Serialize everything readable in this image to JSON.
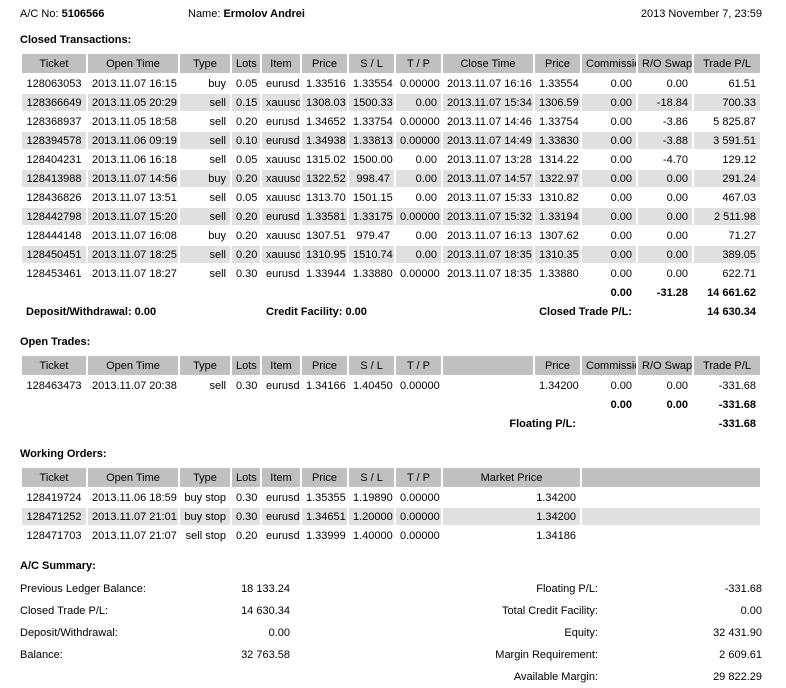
{
  "colors": {
    "header_bg": "#C0C0C0",
    "row_alt_bg": "#E0E0E0",
    "page_bg": "#FFFFFF",
    "text": "#000000"
  },
  "header": {
    "ac_no_label": "A/C No:",
    "ac_no": "5106566",
    "name_label": "Name:",
    "name": "Ermolov Andrei",
    "datetime": "2013 November 7, 23:59"
  },
  "closed_transactions": {
    "title": "Closed Transactions:",
    "columns": [
      "Ticket",
      "Open Time",
      "Type",
      "Lots",
      "Item",
      "Price",
      "S / L",
      "T / P",
      "Close Time",
      "Price",
      "Commission",
      "R/O Swap",
      "Trade P/L"
    ],
    "rows": [
      [
        "128063053",
        "2013.11.07 16:15",
        "buy",
        "0.05",
        "eurusd",
        "1.33516",
        "1.33554",
        "0.00000",
        "2013.11.07 16:16",
        "1.33554",
        "0.00",
        "0.00",
        "61.51"
      ],
      [
        "128366649",
        "2013.11.05 20:29",
        "sell",
        "0.15",
        "xauusd",
        "1308.03",
        "1500.33",
        "0.00",
        "2013.11.07 15:34",
        "1306.59",
        "0.00",
        "-18.84",
        "700.33"
      ],
      [
        "128368937",
        "2013.11.05 18:58",
        "sell",
        "0.20",
        "eurusd",
        "1.34652",
        "1.33754",
        "0.00000",
        "2013.11.07 14:46",
        "1.33754",
        "0.00",
        "-3.86",
        "5 825.87"
      ],
      [
        "128394578",
        "2013.11.06 09:19",
        "sell",
        "0.10",
        "eurusd",
        "1.34938",
        "1.33813",
        "0.00000",
        "2013.11.07 14:49",
        "1.33830",
        "0.00",
        "-3.88",
        "3 591.51"
      ],
      [
        "128404231",
        "2013.11.06 16:18",
        "sell",
        "0.05",
        "xauusd",
        "1315.02",
        "1500.00",
        "0.00",
        "2013.11.07 13:28",
        "1314.22",
        "0.00",
        "-4.70",
        "129.12"
      ],
      [
        "128413988",
        "2013.11.07 14:56",
        "buy",
        "0.20",
        "xauusd",
        "1322.52",
        "998.47",
        "0.00",
        "2013.11.07 14:57",
        "1322.97",
        "0.00",
        "0.00",
        "291.24"
      ],
      [
        "128436826",
        "2013.11.07 13:51",
        "sell",
        "0.05",
        "xauusd",
        "1313.70",
        "1501.15",
        "0.00",
        "2013.11.07 15:33",
        "1310.82",
        "0.00",
        "0.00",
        "467.03"
      ],
      [
        "128442798",
        "2013.11.07 15:20",
        "sell",
        "0.20",
        "eurusd",
        "1.33581",
        "1.33175",
        "0.00000",
        "2013.11.07 15:32",
        "1.33194",
        "0.00",
        "0.00",
        "2 511.98"
      ],
      [
        "128444148",
        "2013.11.07 16:08",
        "buy",
        "0.20",
        "xauusd",
        "1307.51",
        "979.47",
        "0.00",
        "2013.11.07 16:13",
        "1307.62",
        "0.00",
        "0.00",
        "71.27"
      ],
      [
        "128450451",
        "2013.11.07 18:25",
        "sell",
        "0.20",
        "xauusd",
        "1310.95",
        "1510.74",
        "0.00",
        "2013.11.07 18:35",
        "1310.35",
        "0.00",
        "0.00",
        "389.05"
      ],
      [
        "128453461",
        "2013.11.07 18:27",
        "sell",
        "0.30",
        "eurusd",
        "1.33944",
        "1.33880",
        "0.00000",
        "2013.11.07 18:35",
        "1.33880",
        "0.00",
        "0.00",
        "622.71"
      ]
    ],
    "totals": [
      "0.00",
      "-31.28",
      "14 661.62"
    ],
    "deposit_withdrawal": "Deposit/Withdrawal: 0.00",
    "credit_facility": "Credit Facility: 0.00",
    "closed_pl_label": "Closed Trade P/L:",
    "closed_pl_value": "14 630.34"
  },
  "open_trades": {
    "title": "Open Trades:",
    "columns": [
      "Ticket",
      "Open Time",
      "Type",
      "Lots",
      "Item",
      "Price",
      "S / L",
      "T / P",
      "",
      "Price",
      "Commission",
      "R/O Swap",
      "Trade P/L"
    ],
    "rows": [
      [
        "128463473",
        "2013.11.07 20:38",
        "sell",
        "0.30",
        "eurusd",
        "1.34166",
        "1.40450",
        "0.00000",
        "",
        "1.34200",
        "0.00",
        "0.00",
        "-331.68"
      ]
    ],
    "totals": [
      "0.00",
      "0.00",
      "-331.68"
    ],
    "floating_pl_label": "Floating P/L:",
    "floating_pl_value": "-331.68"
  },
  "working_orders": {
    "title": "Working Orders:",
    "columns": [
      "Ticket",
      "Open Time",
      "Type",
      "Lots",
      "Item",
      "Price",
      "S / L",
      "T / P",
      "Market Price",
      ""
    ],
    "rows": [
      [
        "128419724",
        "2013.11.06 18:59",
        "buy stop",
        "0.30",
        "eurusd",
        "1.35355",
        "1.19890",
        "0.00000",
        "1.34200"
      ],
      [
        "128471252",
        "2013.11.07 21:01",
        "buy stop",
        "0.30",
        "eurusd",
        "1.34651",
        "1.20000",
        "0.00000",
        "1.34200"
      ],
      [
        "128471703",
        "2013.11.07 21:07",
        "sell stop",
        "0.20",
        "eurusd",
        "1.33999",
        "1.40000",
        "0.00000",
        "1.34186"
      ]
    ]
  },
  "summary": {
    "title": "A/C Summary:",
    "left": [
      {
        "label": "Previous Ledger Balance:",
        "value": "18 133.24"
      },
      {
        "label": "Closed Trade P/L:",
        "value": "14 630.34"
      },
      {
        "label": "Deposit/Withdrawal:",
        "value": "0.00"
      },
      {
        "label": "Balance:",
        "value": "32 763.58"
      }
    ],
    "right": [
      {
        "label": "Floating P/L:",
        "value": "-331.68"
      },
      {
        "label": "Total Credit Facility:",
        "value": "0.00"
      },
      {
        "label": "Equity:",
        "value": "32 431.90"
      },
      {
        "label": "Margin Requirement:",
        "value": "2 609.61"
      },
      {
        "label": "Available Margin:",
        "value": "29 822.29"
      }
    ]
  }
}
